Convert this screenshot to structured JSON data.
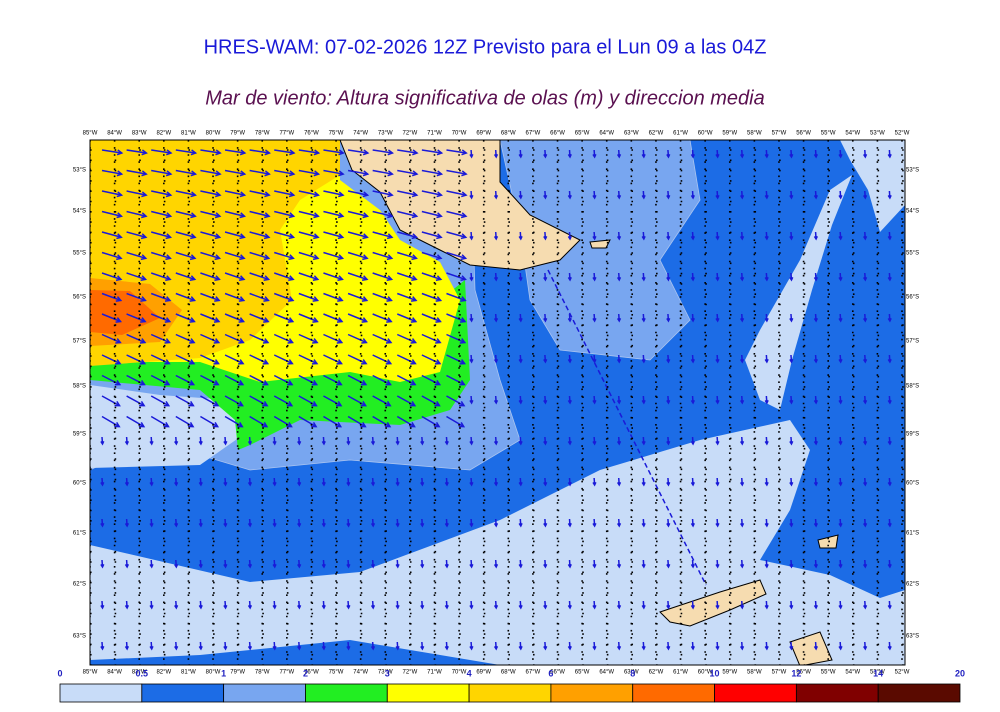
{
  "title": "HRES-WAM: 07-02-2026 12Z Previsto para el Lun 09 a las 04Z",
  "subtitle": "Mar de viento: Altura significativa de olas (m) y direccion media",
  "longitude_labels": [
    "85°W",
    "84°W",
    "83°W",
    "82°W",
    "81°W",
    "80°W",
    "79°W",
    "78°W",
    "77°W",
    "76°W",
    "75°W",
    "74°W",
    "73°W",
    "72°W",
    "71°W",
    "70°W",
    "69°W",
    "68°W",
    "67°W",
    "66°W",
    "65°W",
    "64°W",
    "63°W",
    "62°W",
    "61°W",
    "60°W",
    "59°W",
    "58°W",
    "57°W",
    "56°W",
    "55°W",
    "54°W",
    "53°W",
    "52°W"
  ],
  "latitude_labels": [
    "53°S",
    "54°S",
    "55°S",
    "56°S",
    "57°S",
    "58°S",
    "59°S",
    "60°S",
    "61°S",
    "62°S",
    "63°S"
  ],
  "colorbar": {
    "levels": [
      0,
      0.5,
      1,
      2,
      3,
      4,
      6,
      8,
      10,
      12,
      14,
      20
    ],
    "colors": [
      "#c8dcf8",
      "#1c6ce6",
      "#78a6f0",
      "#22ee22",
      "#ffff00",
      "#ffd500",
      "#ffa000",
      "#ff6a00",
      "#ff0000",
      "#800000",
      "#5a0a00",
      "#333333"
    ]
  }
}
